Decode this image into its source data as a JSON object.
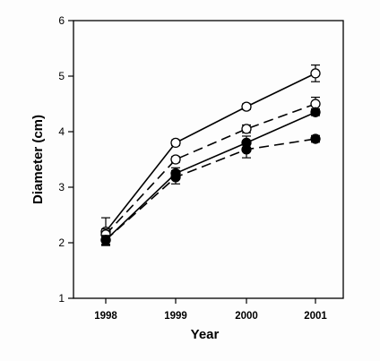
{
  "chart_data": {
    "type": "line",
    "title": "",
    "xlabel": "Year",
    "ylabel": "Diameter (cm)",
    "x": [
      1998,
      1999,
      2000,
      2001
    ],
    "x_tick_labels": [
      "1998",
      "1999",
      "2000",
      "2001"
    ],
    "ylim": [
      1,
      6
    ],
    "y_ticks": [
      1,
      2,
      3,
      4,
      5,
      6
    ],
    "grid": false,
    "legend": "none",
    "series": [
      {
        "values": [
          2.2,
          3.8,
          4.45,
          5.05
        ],
        "errors": [
          0.25,
          0.05,
          0.05,
          0.15
        ],
        "marker": "open-circle",
        "line_style": "solid"
      },
      {
        "values": [
          2.15,
          3.5,
          4.05,
          4.5
        ],
        "errors": [
          0.1,
          0.05,
          0.07,
          0.12
        ],
        "marker": "open-circle",
        "line_style": "dashed"
      },
      {
        "values": [
          2.05,
          3.25,
          3.8,
          4.35
        ],
        "errors": [
          0.08,
          0.1,
          0.12,
          0.06
        ],
        "marker": "filled-circle",
        "line_style": "solid"
      },
      {
        "values": [
          2.05,
          3.18,
          3.68,
          3.87
        ],
        "errors": [
          0.08,
          0.12,
          0.15,
          0.06
        ],
        "marker": "filled-circle",
        "line_style": "dashed"
      }
    ]
  }
}
